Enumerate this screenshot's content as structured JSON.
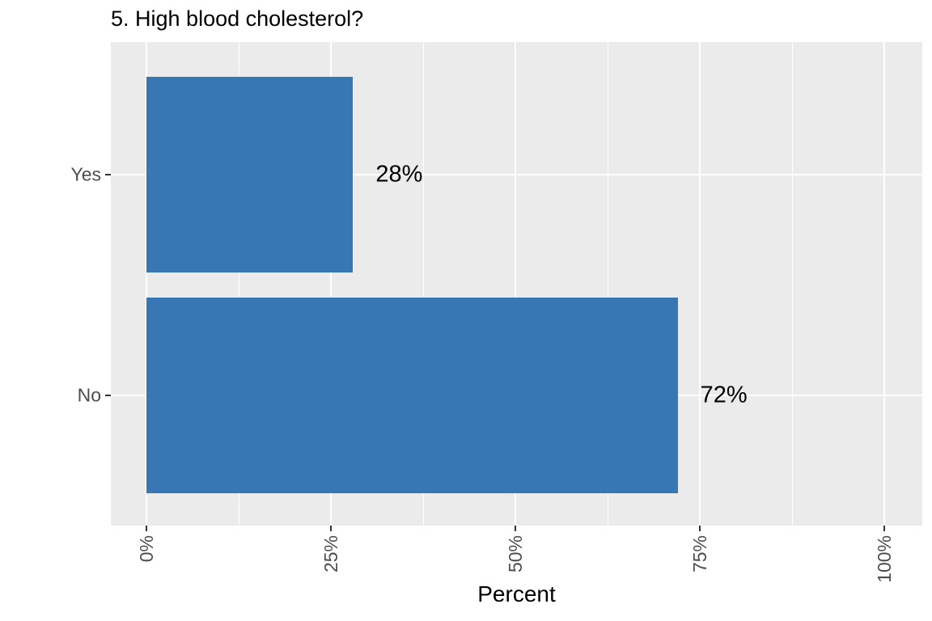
{
  "chart_data": {
    "type": "bar",
    "orientation": "horizontal",
    "title": "5. High blood cholesterol?",
    "xlabel": "Percent",
    "ylabel": "",
    "categories": [
      "Yes",
      "No"
    ],
    "values": [
      28,
      72
    ],
    "value_labels": [
      "28%",
      "72%"
    ],
    "xlim": [
      0,
      100
    ],
    "x_tick_values": [
      0,
      25,
      50,
      75,
      100
    ],
    "x_tick_labels": [
      "0%",
      "25%",
      "50%",
      "75%",
      "100%"
    ],
    "x_minor_tick_values": [
      12.5,
      37.5,
      62.5,
      87.5
    ],
    "x_tick_label_rotation_deg": 90,
    "grid": "white major and minor vertical gridlines, white major horizontal gridlines on gray panel",
    "legend_position": "none",
    "colors": {
      "bar_fill": "#3778B4",
      "panel_background": "#EBEBEB",
      "gridline": "#FFFFFF",
      "axis_text": "#4D4D4D",
      "tick_mark": "#333333",
      "title_text": "#000000",
      "page_background": "#FFFFFF"
    }
  }
}
